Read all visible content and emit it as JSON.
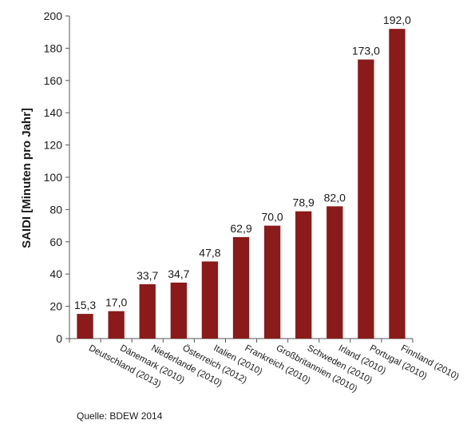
{
  "chart_data": {
    "type": "bar",
    "categories": [
      "Deutschland (2013)",
      "Dänemark (2010)",
      "Niederlande (2010)",
      "Österreich (2012)",
      "Italien (2010)",
      "Frankreich (2010)",
      "Großbritannien (2010)",
      "Schweden (2010)",
      "Irland (2010)",
      "Portugal (2010)",
      "Finnland (2010)"
    ],
    "values": [
      15.3,
      17.0,
      33.7,
      34.7,
      47.8,
      62.9,
      70.0,
      78.9,
      82.0,
      173.0,
      192.0
    ],
    "value_labels": [
      "15,3",
      "17,0",
      "33,7",
      "34,7",
      "47,8",
      "62,9",
      "70,0",
      "78,9",
      "82,0",
      "173,0",
      "192,0"
    ],
    "ylabel": "SAIDI [Minuten pro Jahr]",
    "xlabel": "",
    "ylim": [
      0,
      200
    ],
    "yticks": [
      0,
      20,
      40,
      60,
      80,
      100,
      120,
      140,
      160,
      180,
      200
    ],
    "grid": false,
    "bar_color": "#8b1a1a"
  },
  "source": "Quelle: BDEW 2014"
}
